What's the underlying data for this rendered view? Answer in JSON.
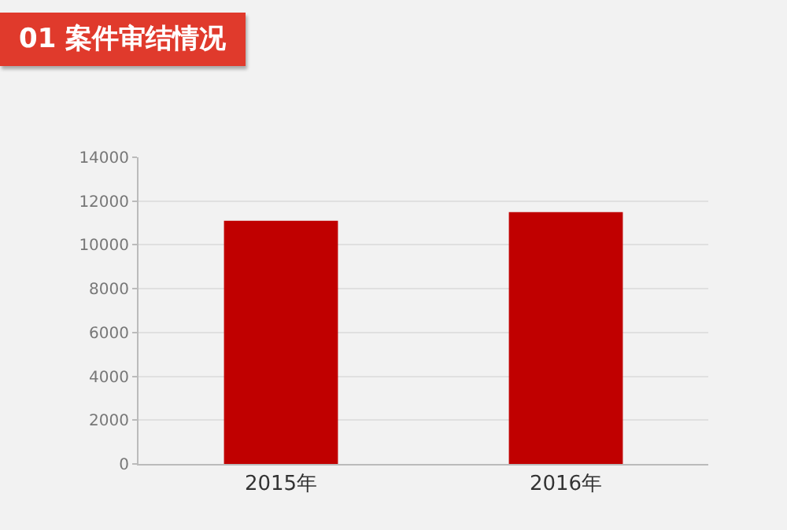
{
  "chart_data": {
    "type": "bar",
    "title": "01  案件审结情况",
    "categories": [
      "2015年",
      "2016年"
    ],
    "values": [
      11100,
      11500
    ],
    "color": "#c00000",
    "ylim": [
      0,
      14000
    ],
    "yticks": [
      0,
      2000,
      4000,
      6000,
      8000,
      10000,
      12000,
      14000
    ],
    "grid": "y"
  }
}
